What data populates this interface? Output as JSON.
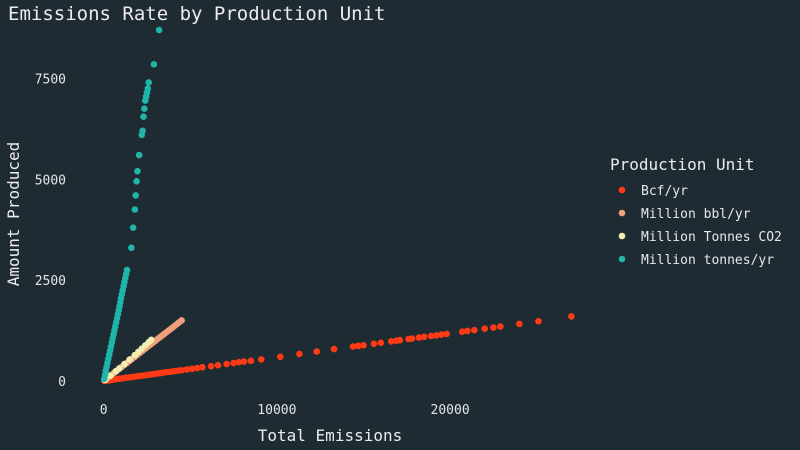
{
  "chart_data": {
    "type": "scatter",
    "title": "Emissions Rate by Production Unit",
    "xlabel": "Total Emissions",
    "ylabel": "Amount Produced",
    "xlim": [
      -500,
      27500
    ],
    "ylim": [
      -150,
      8700
    ],
    "x_ticks": [
      0,
      10000,
      20000
    ],
    "x_tick_labels": [
      "0",
      "10000",
      "20000"
    ],
    "y_ticks": [
      0,
      2500,
      5000,
      7500
    ],
    "y_tick_labels": [
      "0",
      "2500",
      "5000",
      "7500"
    ],
    "grid": false,
    "legend_title": "Production Unit",
    "legend_position": "right",
    "series": [
      {
        "name": "Bcf/yr",
        "color": "#ff3a14",
        "points": [
          [
            50,
            5
          ],
          [
            200,
            10
          ],
          [
            350,
            20
          ],
          [
            500,
            30
          ],
          [
            700,
            40
          ],
          [
            900,
            55
          ],
          [
            1100,
            65
          ],
          [
            1300,
            80
          ],
          [
            1500,
            90
          ],
          [
            1700,
            100
          ],
          [
            1900,
            115
          ],
          [
            2100,
            125
          ],
          [
            2300,
            135
          ],
          [
            2500,
            150
          ],
          [
            2700,
            160
          ],
          [
            2900,
            170
          ],
          [
            3100,
            185
          ],
          [
            3300,
            195
          ],
          [
            3500,
            210
          ],
          [
            3700,
            220
          ],
          [
            3900,
            230
          ],
          [
            4100,
            245
          ],
          [
            4300,
            255
          ],
          [
            4500,
            265
          ],
          [
            4800,
            285
          ],
          [
            5100,
            300
          ],
          [
            5400,
            320
          ],
          [
            5700,
            340
          ],
          [
            6200,
            365
          ],
          [
            6600,
            390
          ],
          [
            7100,
            420
          ],
          [
            7500,
            445
          ],
          [
            7800,
            465
          ],
          [
            8100,
            480
          ],
          [
            8500,
            500
          ],
          [
            9100,
            535
          ],
          [
            10200,
            600
          ],
          [
            11300,
            670
          ],
          [
            12300,
            730
          ],
          [
            13300,
            790
          ],
          [
            14400,
            855
          ],
          [
            14700,
            870
          ],
          [
            15000,
            885
          ],
          [
            15600,
            920
          ],
          [
            16000,
            945
          ],
          [
            16600,
            980
          ],
          [
            16900,
            1000
          ],
          [
            17100,
            1010
          ],
          [
            17600,
            1040
          ],
          [
            17800,
            1050
          ],
          [
            18200,
            1075
          ],
          [
            18500,
            1095
          ],
          [
            18900,
            1115
          ],
          [
            19200,
            1130
          ],
          [
            19500,
            1150
          ],
          [
            19800,
            1165
          ],
          [
            20700,
            1220
          ],
          [
            21000,
            1240
          ],
          [
            21400,
            1260
          ],
          [
            22000,
            1295
          ],
          [
            22500,
            1325
          ],
          [
            22900,
            1350
          ],
          [
            24000,
            1415
          ],
          [
            25100,
            1480
          ],
          [
            27000,
            1600
          ]
        ]
      },
      {
        "name": "Million bbl/yr",
        "color": "#f0a07a",
        "points": [
          [
            50,
            15
          ],
          [
            150,
            50
          ],
          [
            300,
            100
          ],
          [
            450,
            150
          ],
          [
            600,
            200
          ],
          [
            750,
            250
          ],
          [
            900,
            300
          ],
          [
            1050,
            350
          ],
          [
            1200,
            400
          ],
          [
            1350,
            450
          ],
          [
            1500,
            500
          ],
          [
            1650,
            550
          ],
          [
            1800,
            600
          ],
          [
            1950,
            650
          ],
          [
            2100,
            700
          ],
          [
            2250,
            750
          ],
          [
            2400,
            800
          ],
          [
            2550,
            850
          ],
          [
            2700,
            900
          ],
          [
            2850,
            950
          ],
          [
            3000,
            1000
          ],
          [
            3150,
            1050
          ],
          [
            3300,
            1100
          ],
          [
            3450,
            1150
          ],
          [
            3600,
            1200
          ],
          [
            3750,
            1250
          ],
          [
            3900,
            1300
          ],
          [
            4050,
            1350
          ],
          [
            4200,
            1400
          ],
          [
            4350,
            1450
          ],
          [
            4500,
            1500
          ]
        ]
      },
      {
        "name": "Million Tonnes CO2",
        "color": "#f2eeb0",
        "points": [
          [
            100,
            30
          ],
          [
            400,
            130
          ],
          [
            700,
            240
          ],
          [
            900,
            310
          ],
          [
            1200,
            420
          ],
          [
            1500,
            530
          ],
          [
            1800,
            640
          ],
          [
            2000,
            720
          ],
          [
            2200,
            800
          ],
          [
            2400,
            880
          ],
          [
            2600,
            960
          ],
          [
            2750,
            1020
          ]
        ]
      },
      {
        "name": "Million tonnes/yr",
        "color": "#1fb5a8",
        "points": [
          [
            30,
            50
          ],
          [
            80,
            150
          ],
          [
            120,
            250
          ],
          [
            170,
            350
          ],
          [
            220,
            450
          ],
          [
            270,
            550
          ],
          [
            320,
            650
          ],
          [
            370,
            750
          ],
          [
            420,
            850
          ],
          [
            470,
            950
          ],
          [
            520,
            1050
          ],
          [
            570,
            1150
          ],
          [
            620,
            1250
          ],
          [
            670,
            1350
          ],
          [
            720,
            1450
          ],
          [
            770,
            1550
          ],
          [
            820,
            1650
          ],
          [
            870,
            1750
          ],
          [
            920,
            1850
          ],
          [
            960,
            1950
          ],
          [
            1000,
            2050
          ],
          [
            1050,
            2150
          ],
          [
            1100,
            2250
          ],
          [
            1150,
            2350
          ],
          [
            1200,
            2450
          ],
          [
            1250,
            2550
          ],
          [
            1300,
            2650
          ],
          [
            1350,
            2750
          ],
          [
            1600,
            3300
          ],
          [
            1700,
            3800
          ],
          [
            1800,
            4250
          ],
          [
            1850,
            4600
          ],
          [
            1900,
            4950
          ],
          [
            1950,
            5200
          ],
          [
            2050,
            5600
          ],
          [
            2200,
            6100
          ],
          [
            2250,
            6200
          ],
          [
            2300,
            6550
          ],
          [
            2350,
            6750
          ],
          [
            2400,
            6950
          ],
          [
            2450,
            7050
          ],
          [
            2500,
            7150
          ],
          [
            2550,
            7250
          ],
          [
            2600,
            7400
          ],
          [
            2900,
            7850
          ],
          [
            3200,
            8700
          ]
        ]
      }
    ]
  }
}
